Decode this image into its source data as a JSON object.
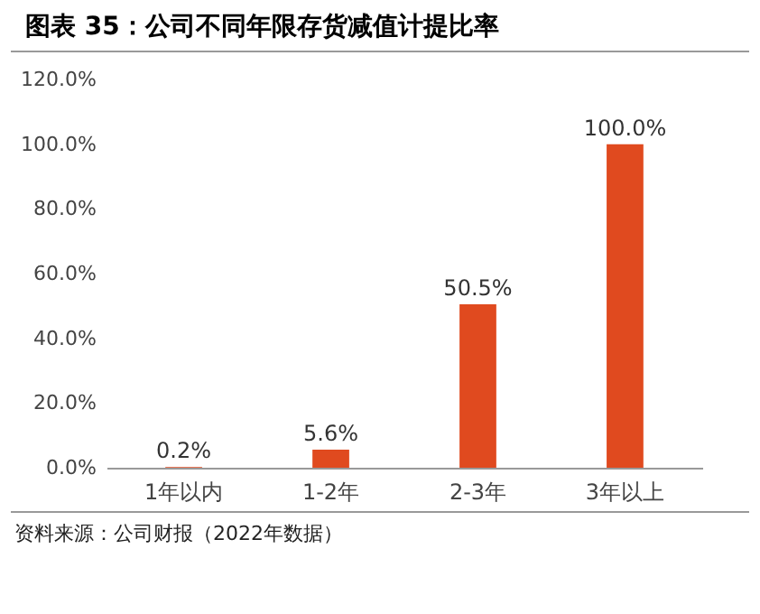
{
  "chart_data": {
    "type": "bar",
    "title": "图表 35：公司不同年限存货减值计提比率",
    "categories": [
      "1年以内",
      "1-2年",
      "2-3年",
      "3年以上"
    ],
    "values": [
      0.2,
      5.6,
      50.5,
      100.0
    ],
    "color": "#e04a1f",
    "value_labels": [
      "0.2%",
      "5.6%",
      "50.5%",
      "100.0%"
    ],
    "ylim": [
      0,
      120
    ],
    "yticks": [
      {
        "value": 0,
        "label": "0.0%"
      },
      {
        "value": 20,
        "label": "20.0%"
      },
      {
        "value": 40,
        "label": "40.0%"
      },
      {
        "value": 60,
        "label": "60.0%"
      },
      {
        "value": 80,
        "label": "80.0%"
      },
      {
        "value": 100,
        "label": "100.0%"
      },
      {
        "value": 120,
        "label": "120.0%"
      }
    ],
    "grid": false,
    "annotations": [
      "资料来源：公司财报（2022年数据）"
    ]
  }
}
